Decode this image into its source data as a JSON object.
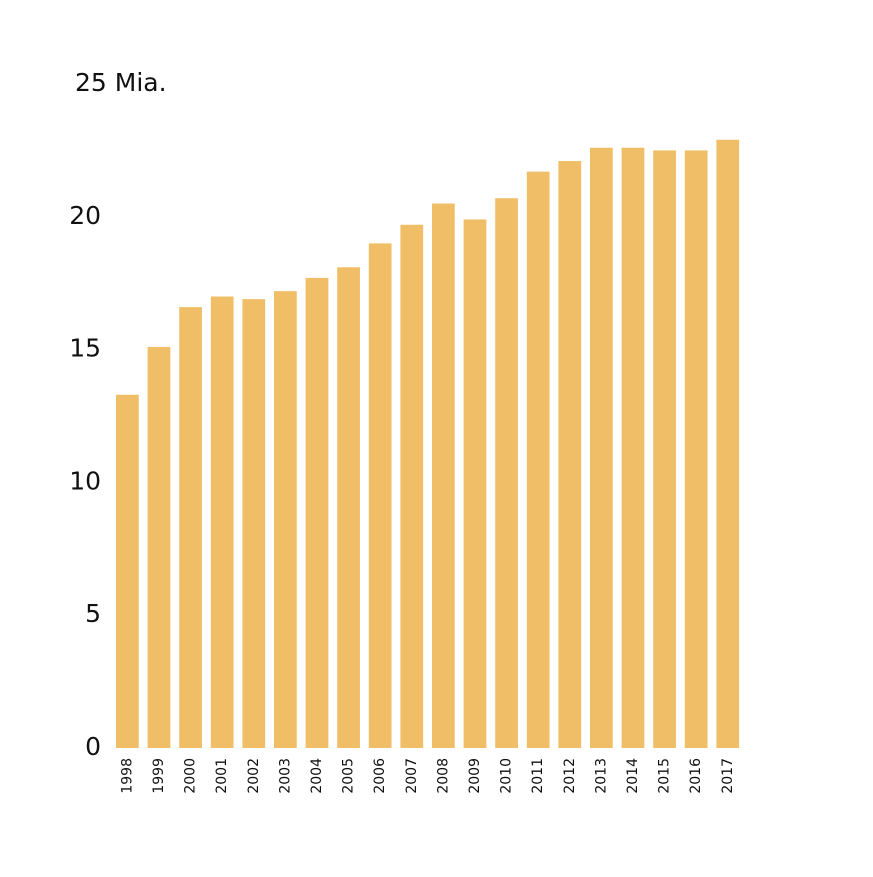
{
  "chart_data": {
    "type": "bar",
    "title": "",
    "xlabel": "",
    "ylabel": "",
    "ylim": [
      0,
      25
    ],
    "y_ticks": [
      {
        "value": 0,
        "label": "0"
      },
      {
        "value": 5,
        "label": "5"
      },
      {
        "value": 10,
        "label": "10"
      },
      {
        "value": 15,
        "label": "15"
      },
      {
        "value": 20,
        "label": "20"
      },
      {
        "value": 25,
        "label": "25 Mia."
      }
    ],
    "grid": false,
    "legend": "none",
    "categories": [
      "1998",
      "1999",
      "2000",
      "2001",
      "2002",
      "2003",
      "2004",
      "2005",
      "2006",
      "2007",
      "2008",
      "2009",
      "2010",
      "2011",
      "2012",
      "2013",
      "2014",
      "2015",
      "2016",
      "2017"
    ],
    "values": [
      13.3,
      15.1,
      16.6,
      17.0,
      16.9,
      17.2,
      17.7,
      18.1,
      19.0,
      19.7,
      20.5,
      19.9,
      20.7,
      21.7,
      22.1,
      22.6,
      22.6,
      22.5,
      22.5,
      22.9
    ],
    "bar_color": "#f0be66",
    "text_color": "#111111"
  }
}
